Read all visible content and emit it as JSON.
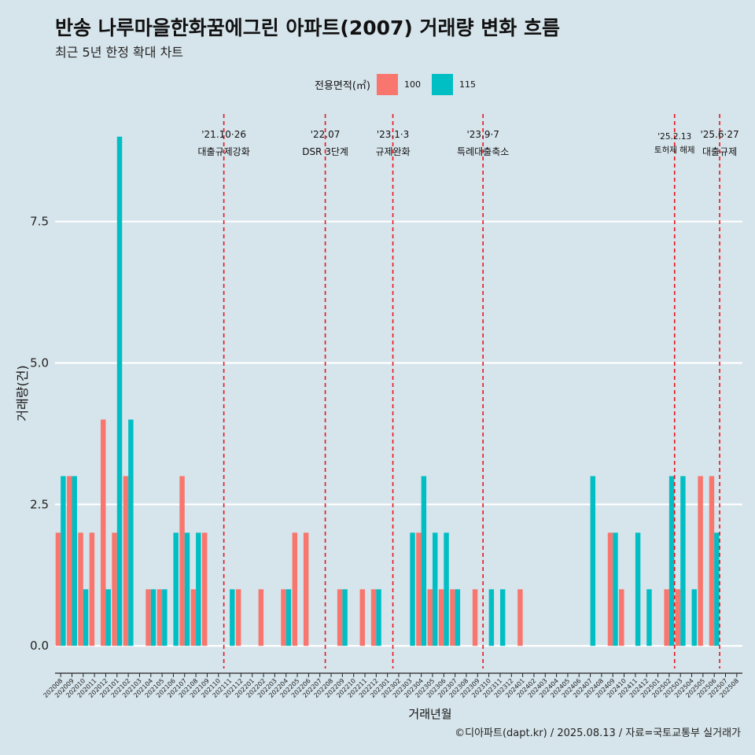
{
  "title": "반송 나루마을한화꿈에그린 아파트(2007) 거래량 변화 흐름",
  "subtitle": "최근 5년 한정 확대 차트",
  "caption": "©디아파트(dapt.kr) / 2025.08.13 / 자료=국토교통부 실거래가",
  "colors": {
    "s100": "#f8766d",
    "s115": "#00bfc4",
    "event": "#e8141e",
    "grid": "#ffffff",
    "axis": "#222222"
  },
  "chart_data": {
    "type": "bar",
    "title": "반송 나루마을한화꿈에그린 아파트(2007) 거래량 변화 흐름",
    "xlabel": "거래년월",
    "ylabel": "거래량(건)",
    "ylim": [
      -0.4,
      9.4
    ],
    "yticks": [
      0.0,
      2.5,
      5.0,
      7.5
    ],
    "ytick_labels": [
      "0.0",
      "2.5",
      "5.0",
      "7.5"
    ],
    "legend_title": "전용면적(㎡)",
    "categories": [
      "202008",
      "202009",
      "202010",
      "202011",
      "202012",
      "202101",
      "202102",
      "202103",
      "202104",
      "202105",
      "202106",
      "202107",
      "202108",
      "202109",
      "202110",
      "202111",
      "202112",
      "202201",
      "202202",
      "202203",
      "202204",
      "202205",
      "202206",
      "202207",
      "202208",
      "202209",
      "202210",
      "202211",
      "202212",
      "202301",
      "202302",
      "202303",
      "202304",
      "202305",
      "202306",
      "202307",
      "202308",
      "202309",
      "202310",
      "202311",
      "202312",
      "202401",
      "202402",
      "202403",
      "202404",
      "202405",
      "202406",
      "202407",
      "202408",
      "202409",
      "202410",
      "202411",
      "202412",
      "202501",
      "202502",
      "202503",
      "202504",
      "202505",
      "202506",
      "202507",
      "202508"
    ],
    "series": [
      {
        "name": "100",
        "values": [
          2,
          3,
          2,
          2,
          4,
          2,
          3,
          0,
          1,
          1,
          0,
          3,
          1,
          2,
          0,
          0,
          1,
          0,
          1,
          0,
          1,
          2,
          2,
          0,
          0,
          1,
          0,
          1,
          1,
          0,
          0,
          0,
          2,
          1,
          1,
          1,
          0,
          1,
          0,
          0,
          0,
          1,
          0,
          0,
          0,
          0,
          0,
          0,
          0,
          2,
          1,
          0,
          0,
          0,
          1,
          1,
          0,
          3,
          3,
          0,
          0
        ]
      },
      {
        "name": "115",
        "values": [
          3,
          3,
          1,
          0,
          1,
          9,
          4,
          0,
          1,
          1,
          2,
          2,
          2,
          0,
          0,
          1,
          0,
          0,
          0,
          0,
          1,
          0,
          0,
          0,
          0,
          1,
          0,
          0,
          1,
          0,
          0,
          2,
          3,
          2,
          2,
          1,
          0,
          0,
          1,
          1,
          0,
          0,
          0,
          0,
          0,
          0,
          0,
          3,
          0,
          2,
          0,
          2,
          1,
          0,
          3,
          3,
          1,
          0,
          2,
          0,
          0
        ]
      }
    ],
    "events": [
      {
        "at": 14,
        "date": "'21.10·26",
        "label": "대출규제강화"
      },
      {
        "at": 23,
        "date": "'22.07",
        "label": "DSR 3단계"
      },
      {
        "at": 29,
        "date": "'23.1·3",
        "label": "규제완화"
      },
      {
        "at": 37,
        "date": "'23.9·7",
        "label": "특례대출축소"
      },
      {
        "at": 54,
        "date": "'25.2.13",
        "label": "토허제 해제"
      },
      {
        "at": 58,
        "date": "'25.6·27",
        "label": "대출규제"
      }
    ]
  }
}
